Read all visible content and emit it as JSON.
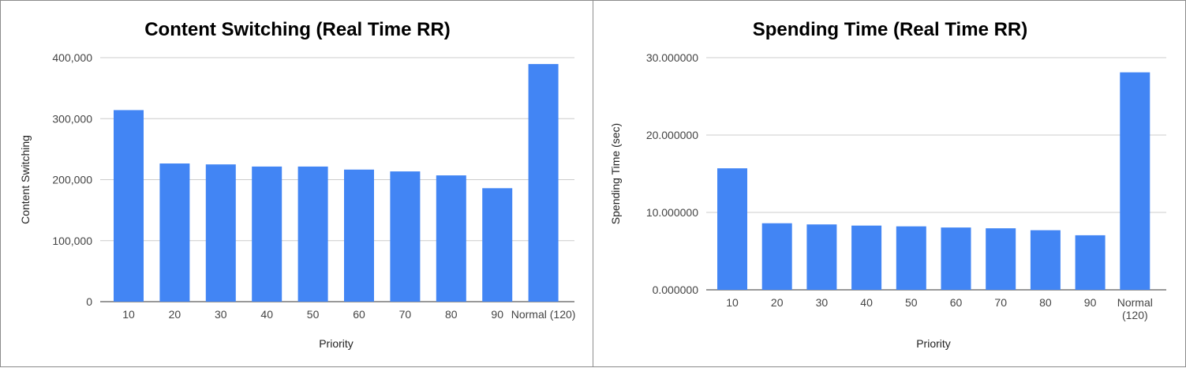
{
  "chart_data": [
    {
      "type": "bar",
      "title": "Content Switching (Real Time RR)",
      "xlabel": "Priority",
      "ylabel": "Content Switching",
      "categories": [
        "10",
        "20",
        "30",
        "40",
        "50",
        "60",
        "70",
        "80",
        "90",
        "Normal (120)"
      ],
      "values": [
        314000,
        226500,
        225000,
        221500,
        221500,
        216500,
        213500,
        207000,
        186000,
        389500
      ],
      "ylim": [
        0,
        400000
      ],
      "yticks": [
        "0",
        "100,000",
        "200,000",
        "300,000",
        "400,000"
      ],
      "grid": true,
      "color": "#4285f4"
    },
    {
      "type": "bar",
      "title": "Spending Time (Real Time RR)",
      "xlabel": "Priority",
      "ylabel": "Spending Time (sec)",
      "categories": [
        "10",
        "20",
        "30",
        "40",
        "50",
        "60",
        "70",
        "80",
        "90",
        "Normal (120)"
      ],
      "category_lines": [
        [
          "10"
        ],
        [
          "20"
        ],
        [
          "30"
        ],
        [
          "40"
        ],
        [
          "50"
        ],
        [
          "60"
        ],
        [
          "70"
        ],
        [
          "80"
        ],
        [
          "90"
        ],
        [
          "Normal",
          "(120)"
        ]
      ],
      "values": [
        15.7,
        8.6,
        8.45,
        8.3,
        8.2,
        8.05,
        7.95,
        7.7,
        7.05,
        28.1
      ],
      "ylim": [
        0,
        30
      ],
      "yticks": [
        "0.000000",
        "10.000000",
        "20.000000",
        "30.000000"
      ],
      "grid": true,
      "color": "#4285f4"
    }
  ]
}
